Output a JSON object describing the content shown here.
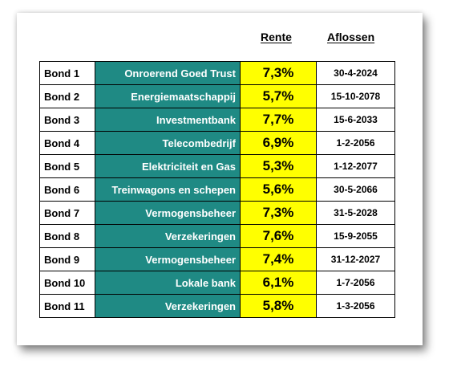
{
  "headers": {
    "rente": "Rente",
    "aflossen": "Aflossen"
  },
  "colors": {
    "sector_bg": "#1f8a84",
    "rate_bg": "#ffff00"
  },
  "bonds": [
    {
      "name": "Bond 1",
      "sector": "Onroerend Goed Trust",
      "rate": "7,3%",
      "maturity": "30-4-2024"
    },
    {
      "name": "Bond 2",
      "sector": "Energiemaatschappij",
      "rate": "5,7%",
      "maturity": "15-10-2078"
    },
    {
      "name": "Bond 3",
      "sector": "Investmentbank",
      "rate": "7,7%",
      "maturity": "15-6-2033"
    },
    {
      "name": "Bond 4",
      "sector": "Telecombedrijf",
      "rate": "6,9%",
      "maturity": "1-2-2056"
    },
    {
      "name": "Bond 5",
      "sector": "Elektriciteit en Gas",
      "rate": "5,3%",
      "maturity": "1-12-2077"
    },
    {
      "name": "Bond 6",
      "sector": "Treinwagons en schepen",
      "rate": "5,6%",
      "maturity": "30-5-2066"
    },
    {
      "name": "Bond 7",
      "sector": "Vermogensbeheer",
      "rate": "7,3%",
      "maturity": "31-5-2028"
    },
    {
      "name": "Bond 8",
      "sector": "Verzekeringen",
      "rate": "7,6%",
      "maturity": "15-9-2055"
    },
    {
      "name": "Bond 9",
      "sector": "Vermogensbeheer",
      "rate": "7,4%",
      "maturity": "31-12-2027"
    },
    {
      "name": "Bond 10",
      "sector": "Lokale bank",
      "rate": "6,1%",
      "maturity": "1-7-2056"
    },
    {
      "name": "Bond 11",
      "sector": "Verzekeringen",
      "rate": "5,8%",
      "maturity": "1-3-2056"
    }
  ]
}
